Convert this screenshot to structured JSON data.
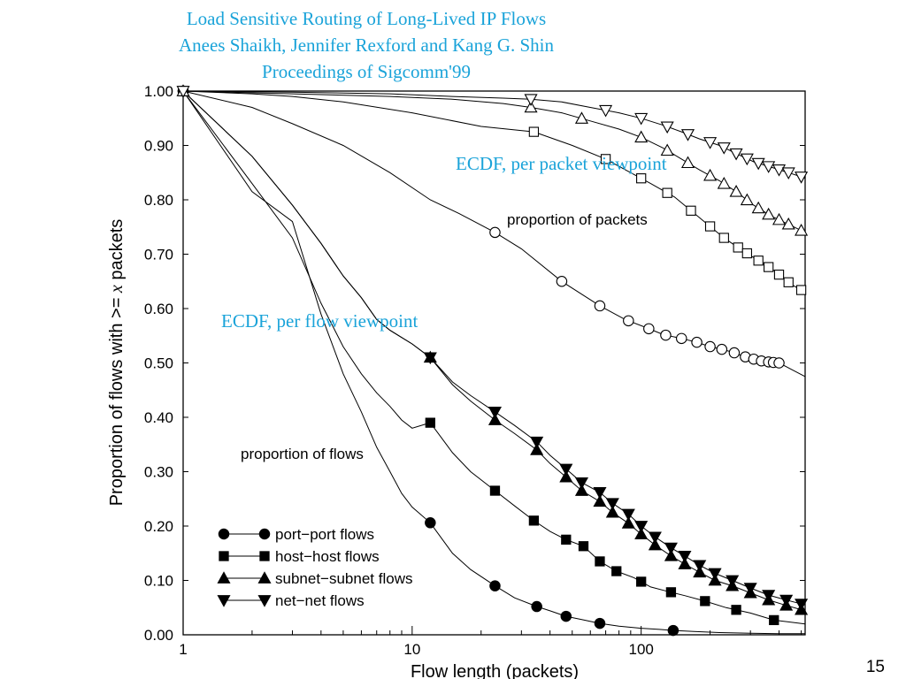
{
  "header": {
    "title": "Load Sensitive Routing of Long-Lived IP Flows",
    "authors": "Anees Shaikh, Jennifer Rexford and Kang G. Shin",
    "venue": "Proceedings of Sigcomm'99"
  },
  "slide_number": "15",
  "colors": {
    "header_text": "#1aa3d9",
    "annotation_text": "#1aa3d9",
    "axis": "#000000",
    "series": "#000000"
  },
  "chart_data": {
    "type": "line",
    "title": "",
    "xlabel": "Flow length (packets)",
    "ylabel_prefix": "Proportion of flows with >= ",
    "ylabel_var": "x",
    "ylabel_suffix": " packets",
    "xscale": "log",
    "xlim": [
      1,
      520
    ],
    "ylim": [
      0,
      1
    ],
    "xticks": [
      1,
      10,
      100
    ],
    "xtick_labels": [
      "1",
      "10",
      "100"
    ],
    "yticks": [
      0,
      0.1,
      0.2,
      0.3,
      0.4,
      0.5,
      0.6,
      0.7,
      0.8,
      0.9,
      1.0
    ],
    "ytick_labels": [
      "0.00",
      "0.10",
      "0.20",
      "0.30",
      "0.40",
      "0.50",
      "0.60",
      "0.70",
      "0.80",
      "0.90",
      "1.00"
    ],
    "grid": false,
    "legend_position": "bottom-left",
    "annotations": {
      "per_packet": "ECDF, per packet viewpoint",
      "per_flow": "ECDF, per flow viewpoint",
      "proportion_packets": "proportion of packets",
      "proportion_flows": "proportion of flows"
    },
    "series": [
      {
        "name": "port−port flows",
        "group": "flows",
        "marker": "circle",
        "filled": true,
        "x": [
          1,
          2,
          3,
          4,
          5,
          6,
          7,
          8,
          9,
          10,
          12,
          15,
          18,
          23,
          28,
          35,
          40,
          47,
          55,
          66,
          80,
          100,
          120,
          138,
          170,
          220,
          300,
          400,
          520
        ],
        "y": [
          1.0,
          0.815,
          0.76,
          0.59,
          0.48,
          0.41,
          0.345,
          0.3,
          0.26,
          0.235,
          0.206,
          0.15,
          0.12,
          0.09,
          0.068,
          0.052,
          0.044,
          0.034,
          0.028,
          0.021,
          0.016,
          0.012,
          0.01,
          0.008,
          0.006,
          0.004,
          0.003,
          0.002,
          0.002
        ],
        "marker_x": [
          1,
          12,
          23,
          35,
          47,
          66,
          138
        ]
      },
      {
        "name": "host−host flows",
        "group": "flows",
        "marker": "square",
        "filled": true,
        "x": [
          1,
          2,
          3,
          4,
          5,
          6,
          7,
          8,
          9,
          10,
          12,
          15,
          18,
          23,
          28,
          34,
          40,
          47,
          56,
          66,
          78,
          93,
          110,
          130,
          155,
          190,
          235,
          300,
          380,
          520
        ],
        "y": [
          1.0,
          0.83,
          0.73,
          0.61,
          0.53,
          0.48,
          0.445,
          0.42,
          0.395,
          0.38,
          0.39,
          0.335,
          0.3,
          0.265,
          0.237,
          0.21,
          0.19,
          0.175,
          0.163,
          0.135,
          0.117,
          0.105,
          0.088,
          0.08,
          0.072,
          0.062,
          0.05,
          0.04,
          0.027,
          0.02
        ],
        "marker_x": [
          1,
          12,
          23,
          34,
          47,
          56,
          66,
          78,
          100,
          135,
          190,
          260,
          380
        ]
      },
      {
        "name": "subnet−subnet flows",
        "group": "flows",
        "marker": "triangle-up",
        "filled": true,
        "x": [
          1,
          2,
          3,
          4,
          5,
          6,
          7,
          8,
          10,
          12,
          15,
          18,
          23,
          28,
          35,
          40,
          47,
          55,
          66,
          75,
          88,
          100,
          115,
          135,
          155,
          180,
          210,
          250,
          300,
          360,
          430,
          520
        ],
        "y": [
          1.0,
          0.88,
          0.79,
          0.72,
          0.66,
          0.62,
          0.58,
          0.56,
          0.535,
          0.51,
          0.46,
          0.43,
          0.395,
          0.37,
          0.34,
          0.315,
          0.29,
          0.265,
          0.245,
          0.225,
          0.205,
          0.185,
          0.165,
          0.145,
          0.13,
          0.115,
          0.1,
          0.09,
          0.077,
          0.064,
          0.054,
          0.044
        ],
        "marker_x": [
          12,
          23,
          35,
          47,
          55,
          66,
          75,
          88,
          100,
          115,
          135,
          155,
          180,
          210,
          250,
          300,
          360,
          430,
          500
        ]
      },
      {
        "name": "net−net flows",
        "group": "flows",
        "marker": "triangle-down",
        "filled": true,
        "x": [
          1,
          2,
          3,
          4,
          5,
          6,
          7,
          8,
          10,
          12,
          15,
          18,
          23,
          28,
          35,
          40,
          47,
          55,
          66,
          75,
          88,
          100,
          115,
          135,
          155,
          180,
          210,
          250,
          300,
          360,
          430,
          520
        ],
        "y": [
          1.0,
          0.88,
          0.79,
          0.72,
          0.66,
          0.62,
          0.58,
          0.56,
          0.535,
          0.51,
          0.465,
          0.44,
          0.41,
          0.385,
          0.355,
          0.33,
          0.305,
          0.28,
          0.262,
          0.242,
          0.222,
          0.2,
          0.18,
          0.16,
          0.145,
          0.128,
          0.113,
          0.1,
          0.086,
          0.073,
          0.064,
          0.055
        ],
        "marker_x": [
          12,
          23,
          35,
          47,
          55,
          66,
          75,
          88,
          100,
          115,
          135,
          155,
          180,
          210,
          250,
          300,
          360,
          430,
          500
        ]
      },
      {
        "name": "port−port packets",
        "group": "packets",
        "marker": "circle",
        "filled": false,
        "x": [
          1,
          2,
          3,
          5,
          8,
          12,
          16,
          23,
          30,
          45,
          66,
          85,
          105,
          125,
          150,
          175,
          200,
          225,
          250,
          280,
          310,
          340,
          375,
          400,
          520
        ],
        "y": [
          1.0,
          0.97,
          0.94,
          0.9,
          0.85,
          0.8,
          0.775,
          0.74,
          0.71,
          0.65,
          0.605,
          0.58,
          0.565,
          0.552,
          0.545,
          0.538,
          0.53,
          0.525,
          0.52,
          0.512,
          0.507,
          0.503,
          0.501,
          0.5,
          0.475
        ],
        "marker_x": [
          1,
          23,
          45,
          66,
          88,
          108,
          128,
          150,
          175,
          200,
          225,
          255,
          285,
          310,
          335,
          360,
          378,
          400
        ]
      },
      {
        "name": "host−host packets",
        "group": "packets",
        "marker": "square",
        "filled": false,
        "x": [
          1,
          2,
          3,
          5,
          10,
          20,
          34,
          50,
          70,
          90,
          110,
          140,
          165,
          195,
          230,
          270,
          320,
          380,
          450,
          520
        ],
        "y": [
          1.0,
          0.995,
          0.99,
          0.98,
          0.96,
          0.935,
          0.925,
          0.9,
          0.875,
          0.85,
          0.83,
          0.805,
          0.78,
          0.755,
          0.73,
          0.71,
          0.69,
          0.67,
          0.645,
          0.63
        ],
        "marker_x": [
          1,
          34,
          70,
          100,
          130,
          165,
          200,
          230,
          265,
          290,
          325,
          360,
          400,
          440,
          500
        ]
      },
      {
        "name": "subnet−subnet packets",
        "group": "packets",
        "marker": "triangle-up",
        "filled": false,
        "x": [
          1,
          3,
          8,
          15,
          25,
          33,
          45,
          60,
          80,
          100,
          125,
          150,
          180,
          220,
          260,
          310,
          370,
          440,
          520
        ],
        "y": [
          1.0,
          0.995,
          0.99,
          0.985,
          0.977,
          0.97,
          0.96,
          0.945,
          0.93,
          0.915,
          0.895,
          0.875,
          0.855,
          0.835,
          0.815,
          0.79,
          0.77,
          0.755,
          0.74
        ],
        "marker_x": [
          1,
          33,
          55,
          100,
          130,
          160,
          200,
          230,
          260,
          290,
          325,
          360,
          400,
          440,
          500
        ]
      },
      {
        "name": "net−net packets",
        "group": "packets",
        "marker": "triangle-down",
        "filled": false,
        "x": [
          1,
          3,
          8,
          15,
          25,
          33,
          45,
          60,
          80,
          100,
          125,
          150,
          180,
          220,
          260,
          310,
          370,
          440,
          520
        ],
        "y": [
          1.0,
          0.998,
          0.995,
          0.99,
          0.987,
          0.985,
          0.98,
          0.97,
          0.96,
          0.95,
          0.937,
          0.925,
          0.912,
          0.9,
          0.885,
          0.87,
          0.86,
          0.85,
          0.84
        ],
        "marker_x": [
          1,
          33,
          70,
          100,
          130,
          160,
          200,
          230,
          260,
          290,
          325,
          360,
          400,
          440,
          500
        ]
      }
    ],
    "legend": [
      {
        "label": "port−port flows",
        "marker": "circle"
      },
      {
        "label": "host−host flows",
        "marker": "square"
      },
      {
        "label": "subnet−subnet flows",
        "marker": "triangle-up"
      },
      {
        "label": "net−net flows",
        "marker": "triangle-down"
      }
    ]
  }
}
